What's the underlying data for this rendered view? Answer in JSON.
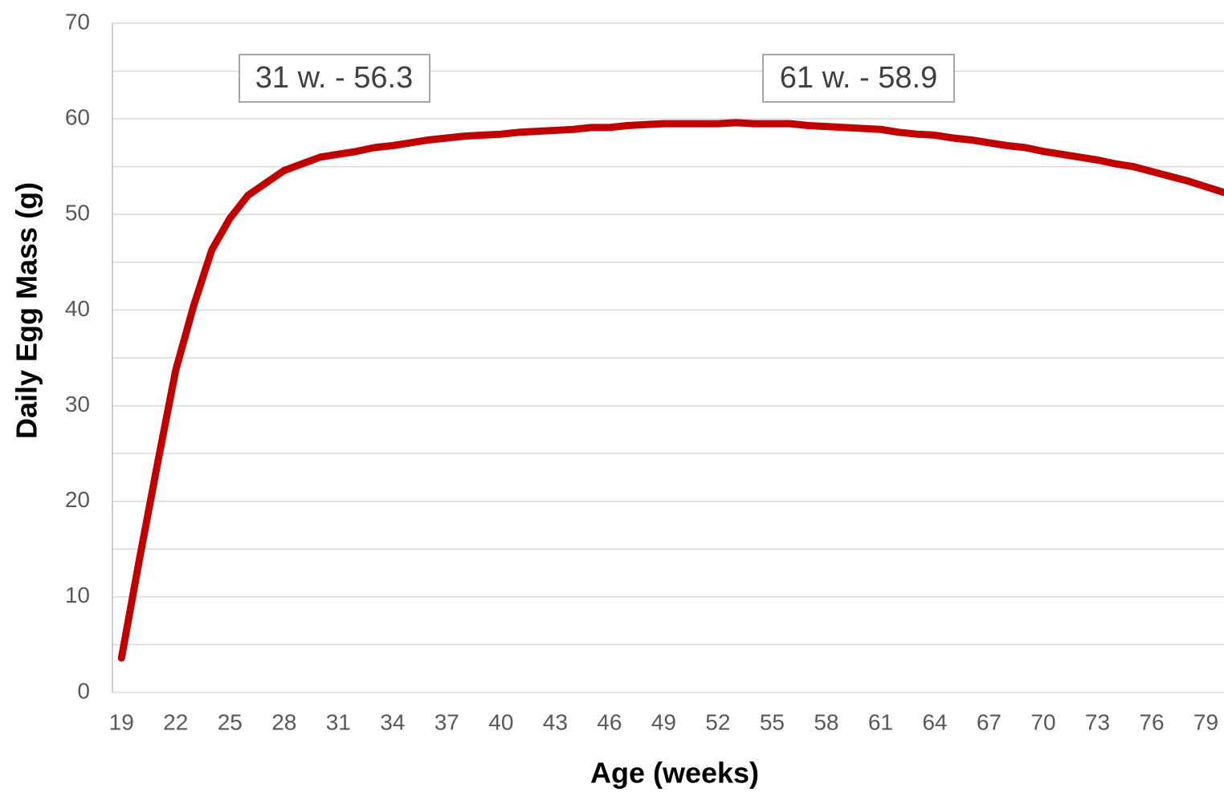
{
  "chart_data": {
    "type": "line",
    "xlabel": "Age (weeks)",
    "ylabel": "Daily Egg Mass (g)",
    "annotations": [
      "31 w. - 56.3",
      "61 w. - 58.9"
    ],
    "x": [
      19,
      20,
      21,
      22,
      23,
      24,
      25,
      26,
      27,
      28,
      29,
      30,
      31,
      32,
      33,
      34,
      35,
      36,
      37,
      38,
      39,
      40,
      41,
      42,
      43,
      44,
      45,
      46,
      47,
      48,
      49,
      50,
      51,
      52,
      53,
      54,
      55,
      56,
      57,
      58,
      59,
      60,
      61,
      62,
      63,
      64,
      65,
      66,
      67,
      68,
      69,
      70,
      71,
      72,
      73,
      74,
      75,
      76,
      77,
      78,
      79,
      80
    ],
    "series": [
      {
        "color": "#c00000",
        "values": [
          3.6,
          14,
          24,
          33.7,
          40.5,
          46.3,
          49.6,
          52,
          53.3,
          54.6,
          55.3,
          56,
          56.3,
          56.6,
          57,
          57.2,
          57.5,
          57.8,
          58,
          58.2,
          58.3,
          58.4,
          58.6,
          58.7,
          58.8,
          58.9,
          59.1,
          59.1,
          59.3,
          59.4,
          59.5,
          59.5,
          59.5,
          59.5,
          59.6,
          59.5,
          59.5,
          59.5,
          59.3,
          59.2,
          59.1,
          59.0,
          58.9,
          58.6,
          58.4,
          58.3,
          58.0,
          57.8,
          57.5,
          57.2,
          57.0,
          56.6,
          56.3,
          56.0,
          55.7,
          55.3,
          55.0,
          54.5,
          54.0,
          53.5,
          52.9,
          52.3
        ]
      }
    ],
    "xlim": [
      18.5,
      80
    ],
    "xticks": [
      19,
      22,
      25,
      28,
      31,
      34,
      37,
      40,
      43,
      46,
      49,
      52,
      55,
      58,
      61,
      64,
      67,
      70,
      73,
      76,
      79
    ],
    "ylim": [
      0,
      70
    ],
    "yticks": [
      0,
      10,
      20,
      30,
      40,
      50,
      60,
      70
    ],
    "yminorticks": [
      5,
      15,
      25,
      35,
      45,
      55,
      65
    ],
    "grid": true
  }
}
